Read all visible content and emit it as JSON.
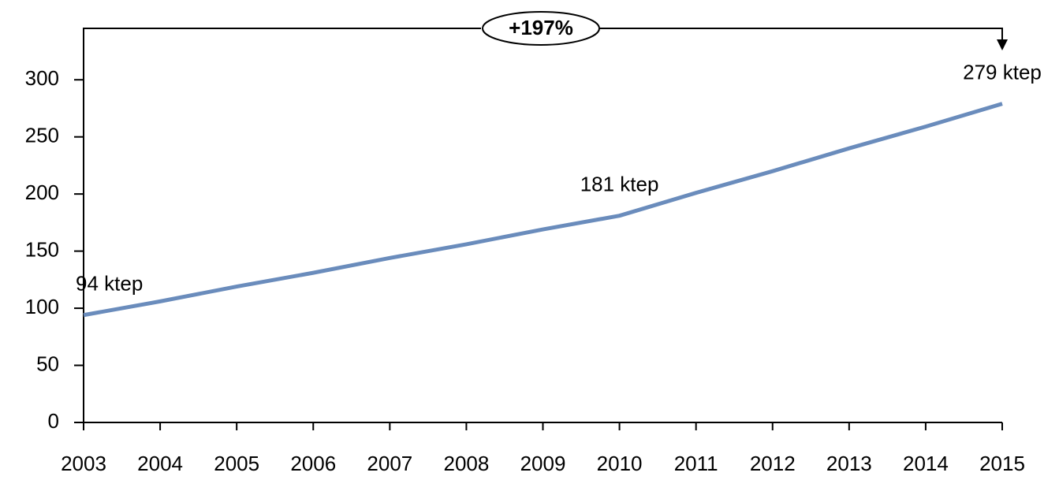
{
  "chart_data": {
    "type": "line",
    "categories": [
      "2003",
      "2004",
      "2005",
      "2006",
      "2007",
      "2008",
      "2009",
      "2010",
      "2011",
      "2012",
      "2013",
      "2014",
      "2015"
    ],
    "series": [
      {
        "name": null,
        "color": "#6a8cbc",
        "values": [
          94,
          106,
          119,
          131,
          144,
          156,
          169,
          181,
          201,
          220,
          240,
          259,
          279
        ],
        "value_labels": [
          "94 ktep",
          null,
          null,
          null,
          null,
          null,
          null,
          "181 ktep",
          null,
          null,
          null,
          null,
          "279 ktep"
        ]
      }
    ],
    "ylim": [
      0,
      345
    ],
    "yticks": [
      0,
      50,
      100,
      150,
      200,
      250,
      300
    ],
    "annotation": "+197%"
  }
}
